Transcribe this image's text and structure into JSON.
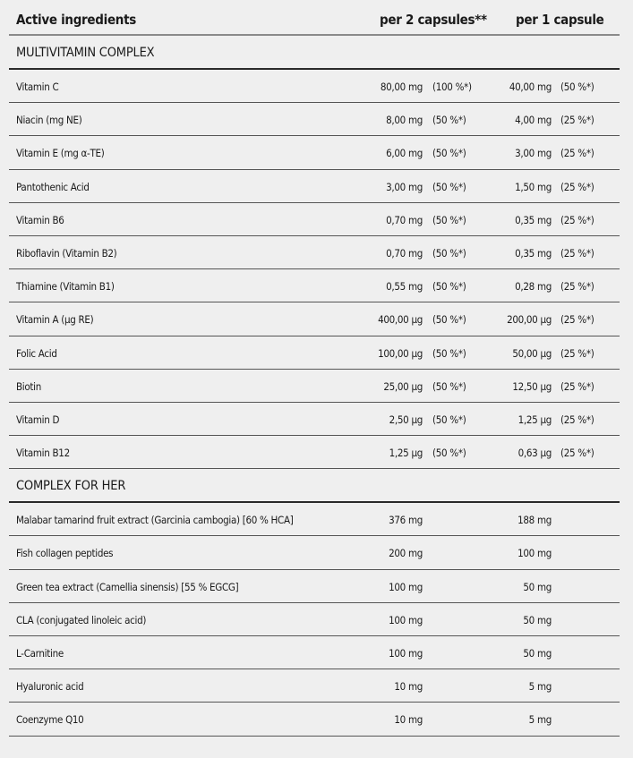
{
  "header": {
    "col_ingredient": "Active ingredients",
    "col_per2": "per 2 capsules**",
    "col_per1": "per 1 capsule"
  },
  "sections": [
    {
      "title": "MULTIVITAMIN COMPLEX",
      "rows": [
        {
          "name": "Vitamin C",
          "per2": "80,00 mg",
          "per2_pct": "(100 %*)",
          "per1": "40,00 mg",
          "per1_pct": "(50 %*)"
        },
        {
          "name": "Niacin (mg NE)",
          "per2": "8,00 mg",
          "per2_pct": "(50 %*)",
          "per1": "4,00 mg",
          "per1_pct": "(25 %*)"
        },
        {
          "name": "Vitamin E (mg α-TE)",
          "per2": "6,00 mg",
          "per2_pct": "(50 %*)",
          "per1": "3,00 mg",
          "per1_pct": "(25 %*)"
        },
        {
          "name": "Pantothenic Acid",
          "per2": "3,00 mg",
          "per2_pct": "(50 %*)",
          "per1": "1,50 mg",
          "per1_pct": "(25 %*)"
        },
        {
          "name": "Vitamin B6",
          "per2": "0,70 mg",
          "per2_pct": "(50 %*)",
          "per1": "0,35 mg",
          "per1_pct": "(25 %*)"
        },
        {
          "name": "Riboflavin (Vitamin B2)",
          "per2": "0,70 mg",
          "per2_pct": "(50 %*)",
          "per1": "0,35 mg",
          "per1_pct": "(25 %*)"
        },
        {
          "name": "Thiamine (Vitamin B1)",
          "per2": "0,55 mg",
          "per2_pct": "(50 %*)",
          "per1": "0,28 mg",
          "per1_pct": "(25 %*)"
        },
        {
          "name": "Vitamin A (µg RE)",
          "per2": "400,00 µg",
          "per2_pct": "(50 %*)",
          "per1": "200,00 µg",
          "per1_pct": "(25 %*)"
        },
        {
          "name": "Folic Acid",
          "per2": "100,00 µg",
          "per2_pct": "(50 %*)",
          "per1": "50,00 µg",
          "per1_pct": "(25 %*)"
        },
        {
          "name": "Biotin",
          "per2": "25,00 µg",
          "per2_pct": "(50 %*)",
          "per1": "12,50 µg",
          "per1_pct": "(25 %*)"
        },
        {
          "name": "Vitamin D",
          "per2": "2,50 µg",
          "per2_pct": "(50 %*)",
          "per1": "1,25 µg",
          "per1_pct": "(25 %*)"
        },
        {
          "name": "Vitamin B12",
          "per2": "1,25 µg",
          "per2_pct": "(50 %*)",
          "per1": "0,63 µg",
          "per1_pct": "(25 %*)"
        }
      ]
    },
    {
      "title": "COMPLEX FOR HER",
      "rows": [
        {
          "name": "Malabar tamarind fruit extract (Garcinia cambogia) [60 % HCA]",
          "per2": "376 mg",
          "per1": "188 mg"
        },
        {
          "name": "Fish collagen peptides",
          "per2": "200 mg",
          "per1": "100 mg"
        },
        {
          "name": "Green tea extract (Camellia sinensis) [55 % EGCG]",
          "per2": "100 mg",
          "per1": "50 mg"
        },
        {
          "name": "CLA (conjugated linoleic acid)",
          "per2": "100 mg",
          "per1": "50 mg"
        },
        {
          "name": "L-Carnitine",
          "per2": "100 mg",
          "per1": "50 mg"
        },
        {
          "name": "Hyaluronic acid",
          "per2": "10 mg",
          "per1": "5 mg"
        },
        {
          "name": "Coenzyme Q10",
          "per2": "10 mg",
          "per1": "5 mg"
        }
      ]
    }
  ]
}
